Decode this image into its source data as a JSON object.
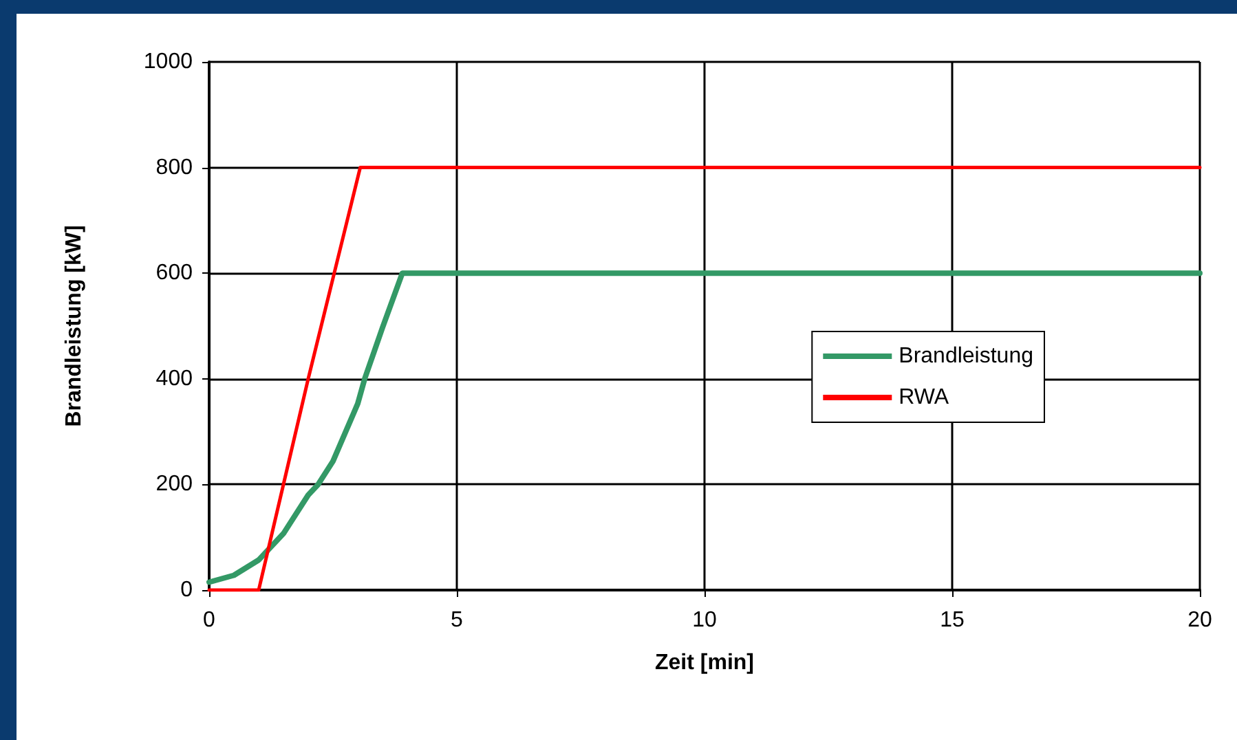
{
  "chart_data": {
    "type": "line",
    "xlabel": "Zeit [min]",
    "ylabel": "Brandleistung [kW]",
    "xlim": [
      0,
      20
    ],
    "xticks": [
      0,
      5,
      10,
      15,
      20
    ],
    "ylim": [
      0,
      1000
    ],
    "yticks": [
      0,
      200,
      400,
      600,
      800,
      1000
    ],
    "grid": true,
    "legend": "right",
    "marker": "none",
    "line_style": "solid",
    "series": [
      {
        "name": "Brandleistung",
        "color": "#339966",
        "x": [
          0,
          0.5,
          1,
          1.5,
          2,
          2.2,
          2.5,
          3,
          3.14,
          3.5,
          3.9,
          20
        ],
        "values": [
          15,
          28,
          57,
          107,
          180,
          200,
          244,
          353,
          400,
          497,
          600,
          600
        ]
      },
      {
        "name": "RWA",
        "color": "#ff0000",
        "x": [
          0,
          0.8,
          1,
          1.5,
          2,
          3.05,
          20
        ],
        "values": [
          0,
          0,
          0,
          200,
          400,
          800,
          800
        ]
      }
    ]
  }
}
